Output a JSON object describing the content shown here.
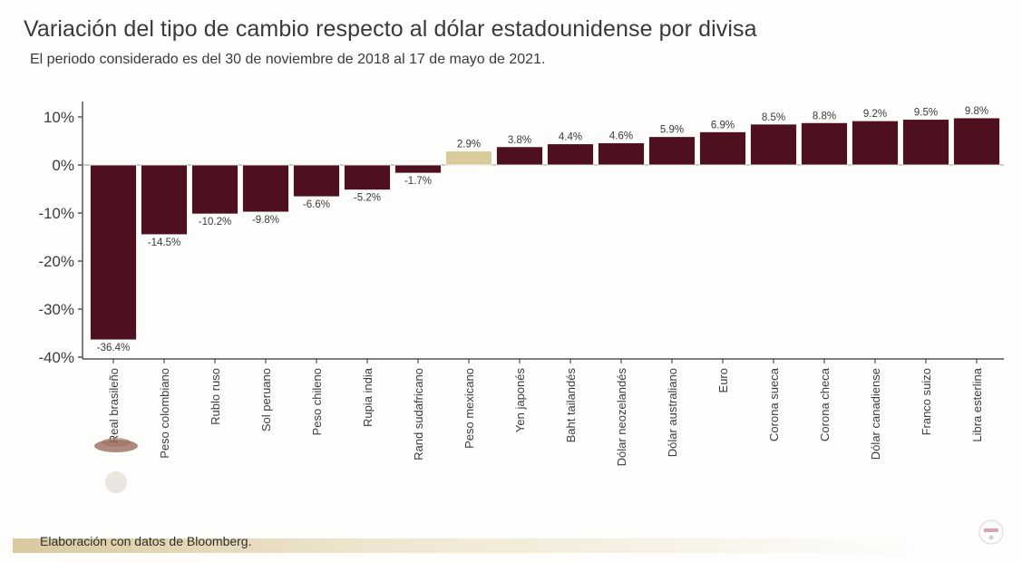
{
  "page": {
    "title": "Variación del tipo de cambio respecto al dólar estadounidense por divisa",
    "subtitle": "El periodo considerado es del 30 de noviembre de 2018 al 17 de mayo de 2021.",
    "source": "Elaboración con datos de Bloomberg."
  },
  "colors": {
    "bar_default": "#4e0f1f",
    "bar_highlight": "#d9cc9c",
    "axis": "#555555",
    "text": "#3a3a3a"
  },
  "chart_data": {
    "type": "bar",
    "title": "Variación del tipo de cambio respecto al dólar estadounidense por divisa",
    "subtitle": "El periodo considerado es del 30 de noviembre de 2018 al 17 de mayo de 2021.",
    "xlabel": "",
    "ylabel": "",
    "ylim": [
      -40,
      10
    ],
    "yticks": [
      10,
      0,
      -10,
      -20,
      -30,
      -40
    ],
    "ytick_labels": [
      "10%",
      "0%",
      "-10%",
      "-20%",
      "-30%",
      "-40%"
    ],
    "grid": false,
    "legend": null,
    "highlight_category": "Peso mexicano",
    "categories": [
      "Real brasileño",
      "Peso colombiano",
      "Rublo ruso",
      "Sol peruano",
      "Peso chileno",
      "Rupia india",
      "Rand sudafricano",
      "Peso mexicano",
      "Yen japonés",
      "Baht tailandés",
      "Dólar neozelandés",
      "Dólar australiano",
      "Euro",
      "Corona sueca",
      "Corona checa",
      "Dólar canadiense",
      "Franco suizo",
      "Libra esterlina"
    ],
    "values": [
      -36.4,
      -14.5,
      -10.2,
      -9.8,
      -6.6,
      -5.2,
      -1.7,
      2.9,
      3.8,
      4.4,
      4.6,
      5.9,
      6.9,
      8.5,
      8.8,
      9.2,
      9.5,
      9.8
    ],
    "value_labels": [
      "-36.4%",
      "-14.5%",
      "-10.2%",
      "-9.8%",
      "-6.6%",
      "-5.2%",
      "-1.7%",
      "2.9%",
      "3.8%",
      "4.4%",
      "4.6%",
      "5.9%",
      "6.9%",
      "8.5%",
      "8.8%",
      "9.2%",
      "9.5%",
      "9.8%"
    ],
    "source": "Elaboración con datos de Bloomberg."
  }
}
